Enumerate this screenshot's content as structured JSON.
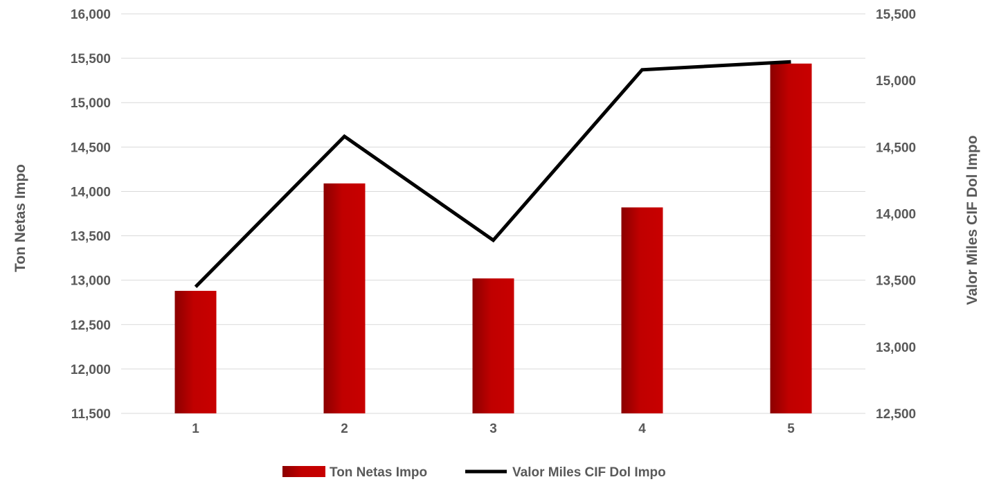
{
  "chart_data": {
    "type": "bar",
    "categories": [
      "1",
      "2",
      "3",
      "4",
      "5"
    ],
    "series": [
      {
        "name": "Ton Netas Impo",
        "type": "bar",
        "axis": "left",
        "values": [
          12880,
          14090,
          13020,
          13820,
          15440
        ]
      },
      {
        "name": "Valor Miles CIF Dol Impo",
        "type": "line",
        "axis": "right",
        "values": [
          13450,
          14580,
          13800,
          15080,
          15140
        ]
      }
    ],
    "ylabel": "Ton Netas Impo",
    "y2label": "Valor Miles CIF Dol Impo",
    "ylim": [
      11500,
      16000
    ],
    "y2lim": [
      12500,
      15500
    ],
    "yticks": [
      "11,500",
      "12,000",
      "12,500",
      "13,000",
      "13,500",
      "14,000",
      "14,500",
      "15,000",
      "15,500",
      "16,000"
    ],
    "y2ticks": [
      "12,500",
      "13,000",
      "13,500",
      "14,000",
      "14,500",
      "15,000",
      "15,500"
    ],
    "grid": true,
    "legend_position": "bottom",
    "colors": {
      "bar": "#c00000",
      "bar_dark": "#8b0000",
      "line": "#000000",
      "grid": "#d9d9d9",
      "text": "#595959"
    }
  }
}
